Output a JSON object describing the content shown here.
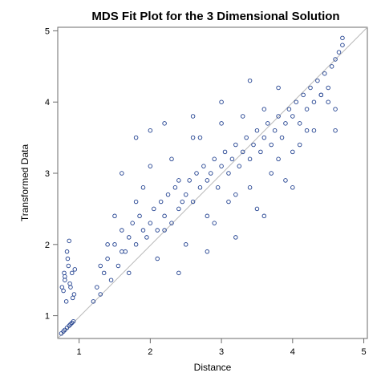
{
  "chart_data": {
    "type": "scatter",
    "title": "MDS Fit Plot for the 3 Dimensional Solution",
    "xlabel": "Distance",
    "ylabel": "Transformed Data",
    "xlim": [
      0.7,
      5.05
    ],
    "ylim": [
      0.68,
      5.05
    ],
    "xticks": [
      "1",
      "2",
      "3",
      "4",
      "5"
    ],
    "yticks": [
      "1",
      "2",
      "3",
      "4",
      "5"
    ],
    "grid": false,
    "reference_line": {
      "from": [
        0.7,
        0.68
      ],
      "to": [
        5.05,
        5.05
      ],
      "description": "identity line y = x"
    },
    "marker_color": "#1f3f8f",
    "reference_line_color": "#b8b8b8",
    "series": [
      {
        "marker": "open-circle",
        "x": [
          0.75,
          0.78,
          0.8,
          0.83,
          0.86,
          0.88,
          0.9,
          0.92,
          0.78,
          0.8,
          0.82,
          0.85,
          0.88,
          0.9,
          0.93,
          0.8,
          0.84,
          0.87,
          0.91,
          0.94,
          0.76,
          0.79,
          0.83,
          0.86,
          1.2,
          1.25,
          1.3,
          1.35,
          1.4,
          1.45,
          1.5,
          1.55,
          1.6,
          1.65,
          1.7,
          1.75,
          1.8,
          1.85,
          1.9,
          1.95,
          2.0,
          2.05,
          2.1,
          2.15,
          2.2,
          2.25,
          2.3,
          2.35,
          2.4,
          2.45,
          2.5,
          2.55,
          2.6,
          2.65,
          2.7,
          2.75,
          2.8,
          2.85,
          2.9,
          2.95,
          3.0,
          3.05,
          3.1,
          3.15,
          3.2,
          3.25,
          3.3,
          3.35,
          3.4,
          3.45,
          3.5,
          3.55,
          3.6,
          3.65,
          3.7,
          3.75,
          3.8,
          3.85,
          3.9,
          3.95,
          4.0,
          4.05,
          4.1,
          4.15,
          4.2,
          4.25,
          4.3,
          4.35,
          4.4,
          4.45,
          4.5,
          4.55,
          4.6,
          4.65,
          4.7,
          1.3,
          1.5,
          1.7,
          1.9,
          2.1,
          2.3,
          2.5,
          2.7,
          2.9,
          3.1,
          3.3,
          3.5,
          3.7,
          3.9,
          4.1,
          4.3,
          4.5,
          1.4,
          1.6,
          1.8,
          2.0,
          2.2,
          2.4,
          2.6,
          2.8,
          3.0,
          3.2,
          3.4,
          3.6,
          3.8,
          4.0,
          4.2,
          4.4,
          4.6,
          2.2,
          2.6,
          3.0,
          3.4,
          3.8,
          1.8,
          2.0,
          2.4,
          2.8,
          3.2,
          3.6,
          4.0,
          1.6,
          4.6,
          4.7
        ],
        "y": [
          0.75,
          0.78,
          0.8,
          0.83,
          0.86,
          0.88,
          0.9,
          0.92,
          1.35,
          1.5,
          1.2,
          1.7,
          1.4,
          1.6,
          1.3,
          1.55,
          1.8,
          1.45,
          1.25,
          1.65,
          1.4,
          1.6,
          1.9,
          2.05,
          1.2,
          1.4,
          1.3,
          1.6,
          1.8,
          1.5,
          2.0,
          1.7,
          2.2,
          1.9,
          2.1,
          2.3,
          2.0,
          2.4,
          2.2,
          2.1,
          2.3,
          2.5,
          2.2,
          2.6,
          2.4,
          2.7,
          2.3,
          2.8,
          2.5,
          2.6,
          2.7,
          2.9,
          2.6,
          3.0,
          2.8,
          3.1,
          2.9,
          3.0,
          3.2,
          2.8,
          3.1,
          3.3,
          3.0,
          3.2,
          3.4,
          3.1,
          3.3,
          3.5,
          3.2,
          3.4,
          3.6,
          3.3,
          3.5,
          3.7,
          3.4,
          3.6,
          3.8,
          3.5,
          3.7,
          3.9,
          3.8,
          4.0,
          3.7,
          4.1,
          3.9,
          4.2,
          4.0,
          4.3,
          4.1,
          4.4,
          4.2,
          4.5,
          4.6,
          4.7,
          4.9,
          1.7,
          2.4,
          1.6,
          2.8,
          1.8,
          3.2,
          2.0,
          3.5,
          2.3,
          2.6,
          3.8,
          2.5,
          3.0,
          2.9,
          3.4,
          3.6,
          4.0,
          2.0,
          1.9,
          2.6,
          3.1,
          2.2,
          2.9,
          3.5,
          2.4,
          3.7,
          2.7,
          2.8,
          3.9,
          3.2,
          3.3,
          3.6,
          4.1,
          3.9,
          3.7,
          3.8,
          4.0,
          4.3,
          4.2,
          3.5,
          3.6,
          1.6,
          1.9,
          2.1,
          2.4,
          2.8,
          3.0,
          3.6,
          4.8
        ]
      }
    ]
  }
}
